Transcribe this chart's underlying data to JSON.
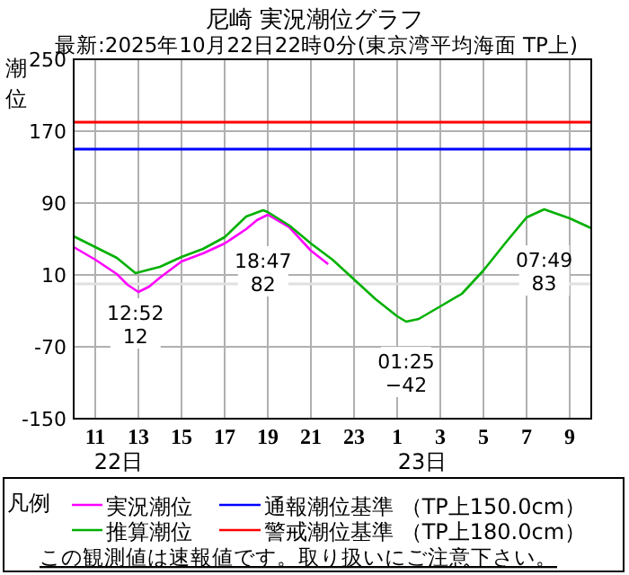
{
  "chart_data": {
    "type": "line",
    "title": "尼崎 実況潮位グラフ",
    "subtitle": "最新:2025年10月22日22時0分(東京湾平均海面 TP上)",
    "ylabel": "潮位",
    "legend_title": "凡例",
    "xlim": [
      "2025-10-22T10:00",
      "2025-10-23T10:00"
    ],
    "xticks": [
      {
        "value": "2025-10-22T11:00",
        "label": "11"
      },
      {
        "value": "2025-10-22T13:00",
        "label": "13"
      },
      {
        "value": "2025-10-22T15:00",
        "label": "15"
      },
      {
        "value": "2025-10-22T17:00",
        "label": "17"
      },
      {
        "value": "2025-10-22T19:00",
        "label": "19"
      },
      {
        "value": "2025-10-22T21:00",
        "label": "21"
      },
      {
        "value": "2025-10-22T23:00",
        "label": "23"
      },
      {
        "value": "2025-10-23T01:00",
        "label": "1"
      },
      {
        "value": "2025-10-23T03:00",
        "label": "3"
      },
      {
        "value": "2025-10-23T05:00",
        "label": "5"
      },
      {
        "value": "2025-10-23T07:00",
        "label": "7"
      },
      {
        "value": "2025-10-23T09:00",
        "label": "9"
      }
    ],
    "ylim": [
      -150,
      250
    ],
    "yticks": [
      -150,
      -70,
      10,
      90,
      170,
      250
    ],
    "grid": true,
    "legend": "bottom",
    "series": [
      {
        "name": "実況潮位",
        "color": "#ff00ff",
        "x": [
          "2025-10-22T10:00",
          "2025-10-22T11:00",
          "2025-10-22T12:00",
          "2025-10-22T12:30",
          "2025-10-22T13:00",
          "2025-10-22T13:30",
          "2025-10-22T14:00",
          "2025-10-22T15:00",
          "2025-10-22T16:00",
          "2025-10-22T17:00",
          "2025-10-22T18:00",
          "2025-10-22T18:30",
          "2025-10-22T19:00",
          "2025-10-22T20:00",
          "2025-10-22T21:00",
          "2025-10-22T21:48"
        ],
        "values": [
          41,
          27,
          11,
          -1,
          -9,
          -3,
          7,
          25,
          34,
          45,
          61,
          71,
          77,
          63,
          37,
          22
        ]
      },
      {
        "name": "推算潮位",
        "color": "#00b000",
        "x": [
          "2025-10-22T10:00",
          "2025-10-22T11:00",
          "2025-10-22T12:00",
          "2025-10-22T12:52",
          "2025-10-22T14:00",
          "2025-10-22T15:00",
          "2025-10-22T16:00",
          "2025-10-22T17:00",
          "2025-10-22T18:00",
          "2025-10-22T18:47",
          "2025-10-22T19:00",
          "2025-10-22T20:00",
          "2025-10-22T21:00",
          "2025-10-22T22:00",
          "2025-10-22T23:00",
          "2025-10-23T00:00",
          "2025-10-23T01:00",
          "2025-10-23T01:25",
          "2025-10-23T02:00",
          "2025-10-23T03:00",
          "2025-10-23T04:00",
          "2025-10-23T05:00",
          "2025-10-23T06:00",
          "2025-10-23T07:00",
          "2025-10-23T07:49",
          "2025-10-23T09:00",
          "2025-10-23T10:00"
        ],
        "values": [
          53,
          41,
          29,
          12,
          19,
          30,
          39,
          52,
          75,
          82,
          80,
          65,
          45,
          27,
          5,
          -17,
          -36,
          -42,
          -39,
          -25,
          -11,
          15,
          45,
          74,
          83,
          73,
          62
        ]
      }
    ],
    "ref_lines": [
      {
        "axis": "y",
        "value": 180,
        "label": "警戒潮位基準 （TP上180.0cm）",
        "color": "#ff0000"
      },
      {
        "axis": "y",
        "value": 150,
        "label": "通報潮位基準 （TP上150.0cm）",
        "color": "#0000ff"
      },
      {
        "axis": "y",
        "value": 0,
        "color": "#e0e0e0"
      }
    ],
    "annotations": [
      {
        "text": "12:52\n12",
        "x": "2025-10-22T12:52",
        "y": 12
      },
      {
        "text": "18:47\n82",
        "x": "2025-10-22T18:47",
        "y": 82
      },
      {
        "text": "01:25\n−42",
        "x": "2025-10-23T01:25",
        "y": -42
      },
      {
        "text": "07:49\n83",
        "x": "2025-10-23T07:49",
        "y": 83
      },
      "22日",
      "23日",
      "この観測値は速報値です。取り扱いにご注意下さい。"
    ]
  }
}
